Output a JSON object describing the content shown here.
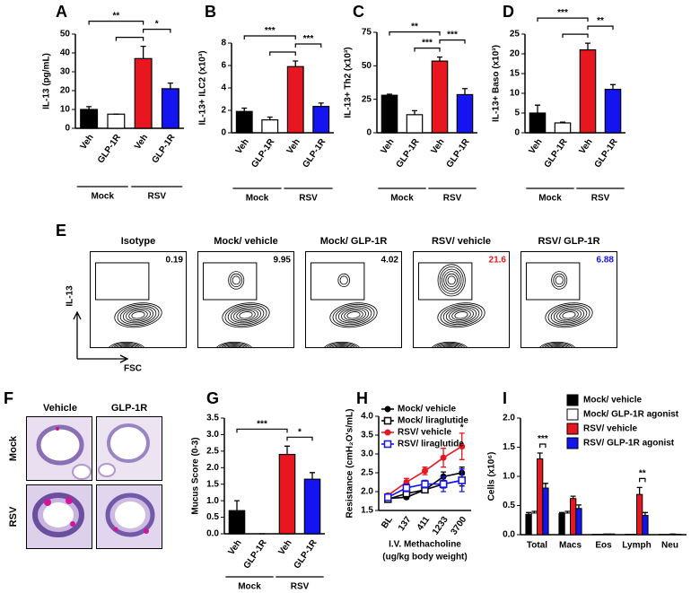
{
  "chart_data": [
    {
      "panel": "A",
      "type": "bar",
      "ylabel": "IL-13 (pg/mL)",
      "categories": [
        "Veh",
        "GLP-1R",
        "Veh",
        "GLP-1R"
      ],
      "values": [
        10,
        7.5,
        37,
        21
      ],
      "errors": [
        1.5,
        0,
        6.5,
        3
      ],
      "colors": [
        "#000000",
        "#ffffff",
        "#e8161e",
        "#1414f0"
      ],
      "ylim": [
        0,
        50
      ],
      "yticks": [
        0,
        10,
        20,
        30,
        40,
        50
      ],
      "groups": [
        "Mock",
        "RSV"
      ],
      "brackets": [
        {
          "from": 0,
          "to": 2,
          "label": "**"
        },
        {
          "from": 1,
          "to": 2
        },
        {
          "from": 2,
          "to": 3,
          "label": "*"
        }
      ]
    },
    {
      "panel": "B",
      "type": "bar",
      "ylabel": "IL-13+ ILC2 (x10³)",
      "categories": [
        "Veh",
        "GLP-1R",
        "Veh",
        "GLP-1R"
      ],
      "values": [
        1.9,
        1.15,
        5.9,
        2.35
      ],
      "errors": [
        0.3,
        0.25,
        0.5,
        0.3
      ],
      "colors": [
        "#000000",
        "#ffffff",
        "#e8161e",
        "#1414f0"
      ],
      "ylim": [
        0,
        8
      ],
      "yticks": [
        0,
        2,
        4,
        6,
        8
      ],
      "groups": [
        "Mock",
        "RSV"
      ],
      "brackets": [
        {
          "from": 0,
          "to": 2,
          "label": "***"
        },
        {
          "from": 1,
          "to": 2
        },
        {
          "from": 2,
          "to": 3,
          "label": "***"
        }
      ]
    },
    {
      "panel": "C",
      "type": "bar",
      "ylabel": "IL-13+ Th2 (x10³)",
      "categories": [
        "Veh",
        "GLP-1R",
        "Veh",
        "GLP-1R"
      ],
      "values": [
        28,
        13.5,
        53.5,
        28.5
      ],
      "errors": [
        0.8,
        3,
        3,
        4.5
      ],
      "colors": [
        "#000000",
        "#ffffff",
        "#e8161e",
        "#1414f0"
      ],
      "ylim": [
        0,
        75
      ],
      "yticks": [
        0,
        25,
        50,
        75
      ],
      "groups": [
        "Mock",
        "RSV"
      ],
      "brackets": [
        {
          "from": 0,
          "to": 2,
          "label": "**"
        },
        {
          "from": 1,
          "to": 2,
          "label": "***"
        },
        {
          "from": 2,
          "to": 3,
          "label": "***"
        }
      ]
    },
    {
      "panel": "D",
      "type": "bar",
      "ylabel": "IL-13+ Baso (x10³)",
      "categories": [
        "Veh",
        "GLP-1R",
        "Veh",
        "GLP-1R"
      ],
      "values": [
        5,
        2.5,
        21,
        11
      ],
      "errors": [
        2,
        0.2,
        1.7,
        1.2
      ],
      "colors": [
        "#000000",
        "#ffffff",
        "#e8161e",
        "#1414f0"
      ],
      "ylim": [
        0,
        25
      ],
      "yticks": [
        0,
        5,
        10,
        15,
        20,
        25
      ],
      "groups": [
        "Mock",
        "RSV"
      ],
      "brackets": [
        {
          "from": 0,
          "to": 2,
          "label": "***"
        },
        {
          "from": 1,
          "to": 2
        },
        {
          "from": 2,
          "to": 3,
          "label": "**"
        }
      ]
    },
    {
      "panel": "G",
      "type": "bar",
      "ylabel": "Mucus Score (0-3)",
      "categories": [
        "Veh",
        "GLP-1R",
        "Veh",
        "GLP-1R"
      ],
      "values": [
        0.7,
        0,
        2.4,
        1.65
      ],
      "errors": [
        0.3,
        0,
        0.25,
        0.2
      ],
      "colors": [
        "#000000",
        "#ffffff",
        "#e8161e",
        "#1414f0"
      ],
      "ylim": [
        0,
        3.5
      ],
      "yticks": [
        {
          "value": 0,
          "label": "0.0"
        },
        0.5,
        {
          "value": 1,
          "label": "1.0"
        },
        1.5,
        {
          "value": 2,
          "label": "2.0"
        },
        2.5,
        {
          "value": 3,
          "label": "3.0"
        },
        3.5
      ],
      "groups": [
        "Mock",
        "RSV"
      ],
      "brackets": [
        {
          "from": 0,
          "to": 2,
          "label": "***"
        },
        {
          "from": 2,
          "to": 3,
          "label": "*"
        }
      ]
    },
    {
      "panel": "H",
      "type": "line",
      "ylabel": "Resistance (cmH₂O's/mL)",
      "xlabel": [
        "I.V. Methacholine",
        "(ug/kg body weight)"
      ],
      "categories": [
        "BL",
        "137",
        "411",
        "1233",
        "3700"
      ],
      "ylim": [
        1.5,
        4.0
      ],
      "yticks": [
        1.5,
        {
          "value": 2,
          "label": "2.0"
        },
        2.5,
        {
          "value": 3,
          "label": "3.0"
        },
        3.5,
        {
          "value": 4,
          "label": "4.0"
        }
      ],
      "series": [
        {
          "name": "Mock/ vehicle",
          "color": "#000000",
          "marker": "filled-circle",
          "values": [
            1.82,
            1.85,
            2.05,
            2.4,
            2.5
          ],
          "errors": [
            0.03,
            0.04,
            0.05,
            0.12,
            0.15
          ]
        },
        {
          "name": "Mock/ liraglutide",
          "color": "#000000",
          "marker": "open-square",
          "values": [
            1.8,
            1.95,
            2.05,
            2.2,
            2.3
          ],
          "errors": [
            0.03,
            0.05,
            0.06,
            0.1,
            0.15
          ]
        },
        {
          "name": "RSV/ vehicle",
          "color": "#e8161e",
          "marker": "filled-circle",
          "values": [
            1.9,
            2.25,
            2.55,
            2.9,
            3.2
          ],
          "errors": [
            0.05,
            0.1,
            0.1,
            0.25,
            0.35
          ]
        },
        {
          "name": "RSV/ liraglutide",
          "color": "#1414f0",
          "marker": "open-square",
          "values": [
            1.85,
            2.1,
            2.2,
            2.2,
            2.3
          ],
          "errors": [
            0.05,
            0.1,
            0.1,
            0.2,
            0.3
          ]
        }
      ],
      "annotations": [
        {
          "category": 4,
          "label": "*"
        }
      ]
    },
    {
      "panel": "I",
      "type": "grouped-bar",
      "ylabel": "Cells (x10⁶)",
      "categories": [
        "Total",
        "Macs",
        "Eos",
        "Lymph",
        "Neu"
      ],
      "ylim": [
        0,
        2.0
      ],
      "yticks": [
        {
          "value": 0,
          "label": "0.0"
        },
        0.5,
        {
          "value": 1,
          "label": "1.0"
        },
        1.5,
        {
          "value": 2,
          "label": "2.0"
        }
      ],
      "series": [
        {
          "name": "Mock/ vehicle",
          "color": "#000000",
          "values": [
            0.35,
            0.36,
            0.005,
            0.005,
            0.002
          ],
          "errors": [
            0.03,
            0.02,
            0,
            0,
            0
          ]
        },
        {
          "name": "Mock/ GLP-1R agonist",
          "color": "#ffffff",
          "values": [
            0.37,
            0.37,
            0.005,
            0.005,
            0.002
          ],
          "errors": [
            0.03,
            0.03,
            0,
            0,
            0
          ]
        },
        {
          "name": "RSV/ vehicle",
          "color": "#e8161e",
          "values": [
            1.3,
            0.62,
            0.01,
            0.69,
            0.01
          ],
          "errors": [
            0.1,
            0.04,
            0,
            0.12,
            0
          ]
        },
        {
          "name": "RSV/ GLP-1R agonist",
          "color": "#1414f0",
          "values": [
            0.8,
            0.45,
            0.01,
            0.33,
            0.005
          ],
          "errors": [
            0.08,
            0.06,
            0,
            0.05,
            0
          ]
        }
      ],
      "brackets": [
        {
          "category": 0,
          "from": 2,
          "to": 3,
          "label": "***"
        },
        {
          "category": 3,
          "from": 2,
          "to": 3,
          "label": "**"
        }
      ]
    }
  ],
  "flow": {
    "panel": "E",
    "ylabel": "IL-13",
    "xlabel": "FSC",
    "plots": [
      {
        "title": "Isotype",
        "value": 0.19,
        "color": "#000000"
      },
      {
        "title": "Mock/ vehicle",
        "value": 9.95,
        "color": "#000000"
      },
      {
        "title": "Mock/ GLP-1R",
        "value": 4.02,
        "color": "#000000"
      },
      {
        "title": "RSV/ vehicle",
        "value": 21.6,
        "color": "#e8161e"
      },
      {
        "title": "RSV/ GLP-1R",
        "value": 6.88,
        "color": "#1414f0"
      }
    ]
  },
  "histology": {
    "panel": "F",
    "columns": [
      "Vehicle",
      "GLP-1R"
    ],
    "rows": [
      "Mock",
      "RSV"
    ]
  }
}
